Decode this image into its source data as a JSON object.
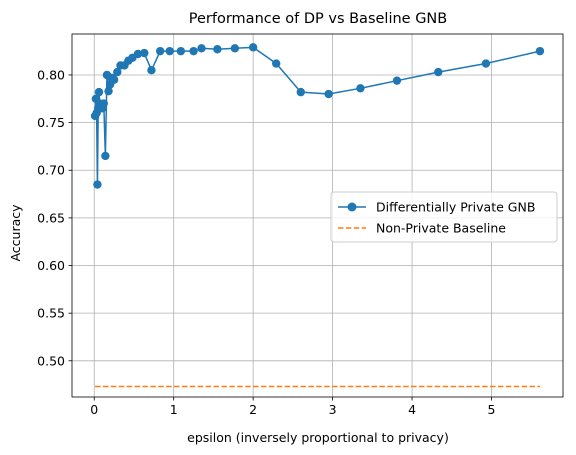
{
  "chart_data": {
    "type": "line",
    "title": "Performance of DP vs Baseline GNB",
    "xlabel": "epsilon (inversely proportional to privacy)",
    "ylabel": "Accuracy",
    "xlim": [
      -0.28,
      5.9
    ],
    "ylim": [
      0.462,
      0.843
    ],
    "xticks": [
      0,
      1,
      2,
      3,
      4,
      5
    ],
    "yticks": [
      0.5,
      0.55,
      0.6,
      0.65,
      0.7,
      0.75,
      0.8
    ],
    "ytick_labels": [
      "0.50",
      "0.55",
      "0.60",
      "0.65",
      "0.70",
      "0.75",
      "0.80"
    ],
    "grid": true,
    "legend_position": "center-right",
    "series": [
      {
        "name": "Differentially Private GNB",
        "color": "#1f77b4",
        "style": "solid",
        "marker": "circle",
        "x": [
          0.01,
          0.02,
          0.03,
          0.04,
          0.05,
          0.06,
          0.07,
          0.08,
          0.09,
          0.1,
          0.12,
          0.14,
          0.16,
          0.18,
          0.2,
          0.22,
          0.25,
          0.29,
          0.33,
          0.38,
          0.43,
          0.48,
          0.55,
          0.63,
          0.72,
          0.83,
          0.95,
          1.09,
          1.25,
          1.35,
          1.55,
          1.77,
          2.0,
          2.29,
          2.6,
          2.95,
          3.35,
          3.81,
          4.33,
          4.93,
          5.61
        ],
        "y": [
          0.757,
          0.775,
          0.76,
          0.685,
          0.765,
          0.782,
          0.77,
          0.765,
          0.768,
          0.765,
          0.77,
          0.715,
          0.8,
          0.783,
          0.79,
          0.797,
          0.795,
          0.803,
          0.81,
          0.81,
          0.815,
          0.818,
          0.822,
          0.823,
          0.805,
          0.825,
          0.825,
          0.825,
          0.825,
          0.828,
          0.827,
          0.828,
          0.829,
          0.812,
          0.782,
          0.78,
          0.786,
          0.794,
          0.803,
          0.812,
          0.825
        ]
      },
      {
        "name": "Non-Private Baseline",
        "color": "#ff7f0e",
        "style": "dashed",
        "marker": "none",
        "x": [
          0.01,
          5.61
        ],
        "y": [
          0.473,
          0.473
        ]
      }
    ]
  }
}
